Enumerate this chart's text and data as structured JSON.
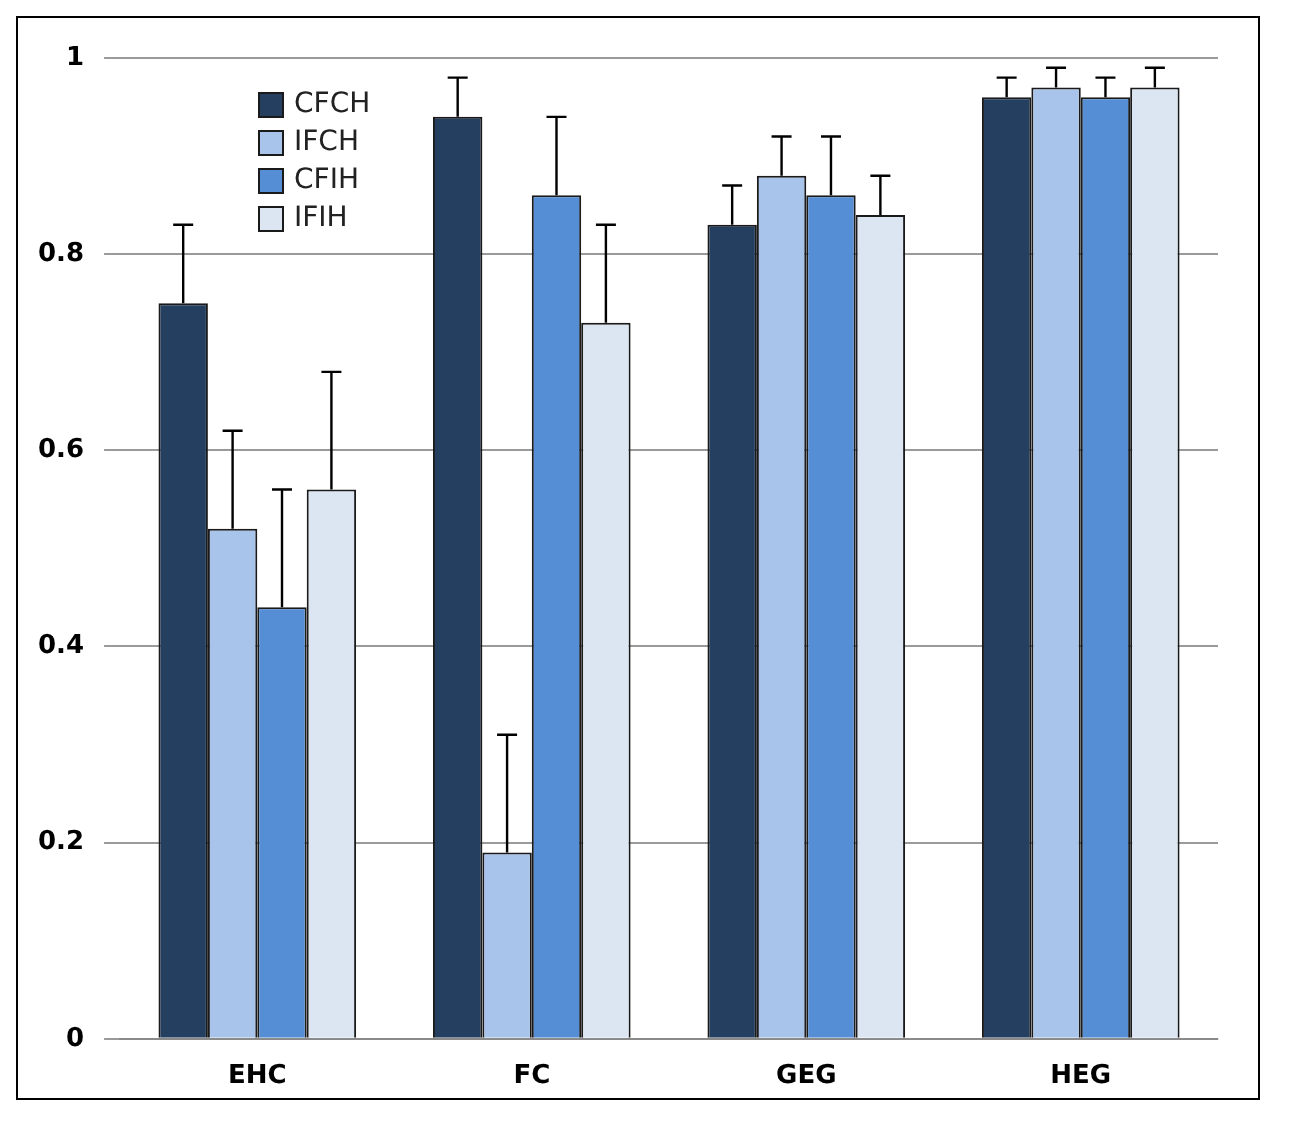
{
  "chart_data": {
    "type": "bar",
    "categories": [
      "EHC",
      "FC",
      "GEG",
      "HEG"
    ],
    "series": [
      {
        "name": "CFCH",
        "color": "#243f60",
        "values": [
          0.75,
          0.94,
          0.83,
          0.96
        ],
        "errors": [
          [
            0.75,
            0.83
          ],
          [
            0.94,
            0.98
          ],
          [
            0.83,
            0.87
          ],
          [
            0.96,
            0.98
          ]
        ]
      },
      {
        "name": "IFCH",
        "color": "#a9c4ea",
        "values": [
          0.52,
          0.19,
          0.88,
          0.97
        ],
        "errors": [
          [
            0.52,
            0.62
          ],
          [
            0.19,
            0.31
          ],
          [
            0.88,
            0.92
          ],
          [
            0.97,
            0.99
          ]
        ]
      },
      {
        "name": "CFIH",
        "color": "#558ed5",
        "values": [
          0.44,
          0.86,
          0.86,
          0.96
        ],
        "errors": [
          [
            0.44,
            0.56
          ],
          [
            0.86,
            0.94
          ],
          [
            0.86,
            0.92
          ],
          [
            0.96,
            0.98
          ]
        ]
      },
      {
        "name": "IFIH",
        "color": "#dce6f2",
        "values": [
          0.56,
          0.73,
          0.84,
          0.97
        ],
        "errors": [
          [
            0.56,
            0.68
          ],
          [
            0.73,
            0.83
          ],
          [
            0.84,
            0.88
          ],
          [
            0.97,
            0.99
          ]
        ]
      }
    ],
    "ylim": [
      0,
      1
    ],
    "yticks": [
      0,
      0.2,
      0.4,
      0.6,
      0.8,
      1
    ],
    "grid": "y",
    "legend": "top left"
  }
}
